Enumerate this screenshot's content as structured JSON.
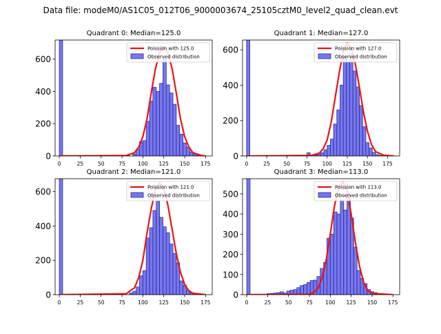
{
  "figure": {
    "suptitle": "Data file: modeM0/AS1C05_012T06_9000003674_25105cztM0_level2_quad_clean.evt"
  },
  "colors": {
    "bar_fill": "#7777ee",
    "bar_edge": "#2b2b99",
    "poisson_line": "#ee1111"
  },
  "chart_data": [
    {
      "type": "bar",
      "title": "Quadrant 0: Median=125.0",
      "xlim": [
        -5,
        183
      ],
      "ylim": [
        0,
        718
      ],
      "x_ticks": [
        0,
        25,
        50,
        75,
        100,
        125,
        150,
        175
      ],
      "y_ticks": [
        0,
        200,
        400,
        600
      ],
      "legend": {
        "placement": "top-right",
        "entries": [
          "Poission with 125.0",
          "Observed distribution"
        ]
      },
      "series": [
        {
          "name": "Observed distribution",
          "kind": "histogram",
          "bin_width": 4,
          "bins": [
            {
              "x0": 0,
              "count": 718
            },
            {
              "x0": 72,
              "count": 5
            },
            {
              "x0": 80,
              "count": 5
            },
            {
              "x0": 88,
              "count": 12
            },
            {
              "x0": 92,
              "count": 40
            },
            {
              "x0": 96,
              "count": 88
            },
            {
              "x0": 100,
              "count": 95
            },
            {
              "x0": 104,
              "count": 215
            },
            {
              "x0": 108,
              "count": 340
            },
            {
              "x0": 112,
              "count": 425
            },
            {
              "x0": 116,
              "count": 400
            },
            {
              "x0": 120,
              "count": 450
            },
            {
              "x0": 124,
              "count": 600
            },
            {
              "x0": 128,
              "count": 440
            },
            {
              "x0": 132,
              "count": 390
            },
            {
              "x0": 136,
              "count": 320
            },
            {
              "x0": 140,
              "count": 190
            },
            {
              "x0": 144,
              "count": 135
            },
            {
              "x0": 148,
              "count": 80
            },
            {
              "x0": 152,
              "count": 55
            },
            {
              "x0": 156,
              "count": 25
            },
            {
              "x0": 160,
              "count": 12
            },
            {
              "x0": 164,
              "count": 4
            }
          ]
        },
        {
          "name": "Poission with 125.0",
          "kind": "line",
          "x": [
            0,
            80,
            90,
            95,
            100,
            105,
            110,
            115,
            120,
            125,
            130,
            135,
            140,
            145,
            150,
            155,
            160,
            170,
            175
          ],
          "y": [
            0,
            3,
            20,
            55,
            120,
            230,
            390,
            540,
            640,
            680,
            640,
            540,
            390,
            230,
            120,
            55,
            20,
            3,
            0
          ]
        }
      ]
    },
    {
      "type": "bar",
      "title": "Quadrant 1: Median=127.0",
      "xlim": [
        -5,
        190
      ],
      "ylim": [
        0,
        655
      ],
      "x_ticks": [
        0,
        25,
        50,
        75,
        100,
        125,
        150,
        175
      ],
      "y_ticks": [
        0,
        200,
        400,
        600
      ],
      "legend": {
        "placement": "top-right",
        "entries": [
          "Poission with 127.0",
          "Observed distribution"
        ]
      },
      "series": [
        {
          "name": "Observed distribution",
          "kind": "histogram",
          "bin_width": 4,
          "bins": [
            {
              "x0": 0,
              "count": 655
            },
            {
              "x0": 75,
              "count": 18
            },
            {
              "x0": 84,
              "count": 5
            },
            {
              "x0": 88,
              "count": 10
            },
            {
              "x0": 92,
              "count": 18
            },
            {
              "x0": 96,
              "count": 35
            },
            {
              "x0": 100,
              "count": 60
            },
            {
              "x0": 104,
              "count": 95
            },
            {
              "x0": 108,
              "count": 180
            },
            {
              "x0": 112,
              "count": 260
            },
            {
              "x0": 116,
              "count": 400
            },
            {
              "x0": 120,
              "count": 560
            },
            {
              "x0": 124,
              "count": 530
            },
            {
              "x0": 128,
              "count": 580
            },
            {
              "x0": 132,
              "count": 480
            },
            {
              "x0": 136,
              "count": 390
            },
            {
              "x0": 140,
              "count": 285
            },
            {
              "x0": 144,
              "count": 165
            },
            {
              "x0": 148,
              "count": 75
            },
            {
              "x0": 152,
              "count": 45
            },
            {
              "x0": 156,
              "count": 20
            },
            {
              "x0": 160,
              "count": 8
            },
            {
              "x0": 164,
              "count": 3
            }
          ]
        },
        {
          "name": "Poission with 127.0",
          "kind": "line",
          "x": [
            0,
            80,
            90,
            95,
            100,
            105,
            110,
            115,
            120,
            125,
            130,
            135,
            140,
            145,
            150,
            155,
            160,
            170,
            183
          ],
          "y": [
            0,
            3,
            15,
            40,
            90,
            190,
            330,
            470,
            590,
            640,
            610,
            520,
            390,
            250,
            140,
            65,
            25,
            4,
            0
          ]
        }
      ]
    },
    {
      "type": "bar",
      "title": "Quadrant 2: Median=121.0",
      "xlim": [
        -5,
        183
      ],
      "ylim": [
        0,
        675
      ],
      "x_ticks": [
        0,
        25,
        50,
        75,
        100,
        125,
        150,
        175
      ],
      "y_ticks": [
        0,
        200,
        400,
        600
      ],
      "legend": {
        "placement": "top-right",
        "entries": [
          "Poission with 121.0",
          "Observed distribution"
        ]
      },
      "series": [
        {
          "name": "Observed distribution",
          "kind": "histogram",
          "bin_width": 4,
          "bins": [
            {
              "x0": 0,
              "count": 675
            },
            {
              "x0": 70,
              "count": 4
            },
            {
              "x0": 76,
              "count": 5
            },
            {
              "x0": 84,
              "count": 10
            },
            {
              "x0": 88,
              "count": 20
            },
            {
              "x0": 92,
              "count": 45
            },
            {
              "x0": 96,
              "count": 110
            },
            {
              "x0": 100,
              "count": 140
            },
            {
              "x0": 104,
              "count": 330
            },
            {
              "x0": 108,
              "count": 390
            },
            {
              "x0": 112,
              "count": 490
            },
            {
              "x0": 116,
              "count": 545
            },
            {
              "x0": 120,
              "count": 450
            },
            {
              "x0": 124,
              "count": 395
            },
            {
              "x0": 128,
              "count": 360
            },
            {
              "x0": 132,
              "count": 295
            },
            {
              "x0": 136,
              "count": 240
            },
            {
              "x0": 140,
              "count": 185
            },
            {
              "x0": 144,
              "count": 80
            },
            {
              "x0": 148,
              "count": 55
            },
            {
              "x0": 152,
              "count": 25
            },
            {
              "x0": 156,
              "count": 10
            },
            {
              "x0": 160,
              "count": 4
            }
          ]
        },
        {
          "name": "Poission with 121.0",
          "kind": "line",
          "x": [
            0,
            80,
            90,
            95,
            100,
            105,
            110,
            115,
            120,
            125,
            130,
            135,
            140,
            145,
            150,
            155,
            160,
            175
          ],
          "y": [
            0,
            5,
            40,
            100,
            200,
            360,
            500,
            610,
            650,
            620,
            520,
            380,
            240,
            130,
            60,
            22,
            8,
            0
          ]
        }
      ]
    },
    {
      "type": "bar",
      "title": "Quadrant 3: Median=113.0",
      "xlim": [
        -5,
        183
      ],
      "ylim": [
        0,
        575
      ],
      "x_ticks": [
        0,
        25,
        50,
        75,
        100,
        125,
        150,
        175
      ],
      "y_ticks": [
        0,
        100,
        200,
        300,
        400,
        500
      ],
      "legend": {
        "placement": "top-right",
        "entries": [
          "Poission with 113.0",
          "Observed distribution"
        ]
      },
      "series": [
        {
          "name": "Observed distribution",
          "kind": "histogram",
          "bin_width": 4,
          "bins": [
            {
              "x0": 0,
              "count": 575
            },
            {
              "x0": 24,
              "count": 5
            },
            {
              "x0": 28,
              "count": 6
            },
            {
              "x0": 32,
              "count": 8
            },
            {
              "x0": 36,
              "count": 10
            },
            {
              "x0": 40,
              "count": 14
            },
            {
              "x0": 44,
              "count": 8
            },
            {
              "x0": 48,
              "count": 18
            },
            {
              "x0": 52,
              "count": 22
            },
            {
              "x0": 56,
              "count": 25
            },
            {
              "x0": 60,
              "count": 35
            },
            {
              "x0": 64,
              "count": 45
            },
            {
              "x0": 68,
              "count": 50
            },
            {
              "x0": 72,
              "count": 60
            },
            {
              "x0": 76,
              "count": 70
            },
            {
              "x0": 80,
              "count": 72
            },
            {
              "x0": 84,
              "count": 90
            },
            {
              "x0": 88,
              "count": 130
            },
            {
              "x0": 92,
              "count": 160
            },
            {
              "x0": 96,
              "count": 280
            },
            {
              "x0": 100,
              "count": 300
            },
            {
              "x0": 104,
              "count": 410
            },
            {
              "x0": 108,
              "count": 400
            },
            {
              "x0": 112,
              "count": 470
            },
            {
              "x0": 116,
              "count": 420
            },
            {
              "x0": 120,
              "count": 500
            },
            {
              "x0": 124,
              "count": 380
            },
            {
              "x0": 128,
              "count": 235
            },
            {
              "x0": 132,
              "count": 120
            },
            {
              "x0": 136,
              "count": 80
            },
            {
              "x0": 140,
              "count": 55
            },
            {
              "x0": 144,
              "count": 25
            },
            {
              "x0": 148,
              "count": 15
            },
            {
              "x0": 152,
              "count": 10
            }
          ]
        },
        {
          "name": "Poission with 113.0",
          "kind": "line",
          "x": [
            0,
            75,
            80,
            85,
            90,
            95,
            100,
            105,
            110,
            115,
            120,
            125,
            130,
            135,
            140,
            145,
            150,
            175
          ],
          "y": [
            0,
            2,
            10,
            30,
            80,
            170,
            300,
            440,
            530,
            560,
            520,
            400,
            260,
            140,
            60,
            20,
            6,
            0
          ]
        }
      ]
    }
  ]
}
